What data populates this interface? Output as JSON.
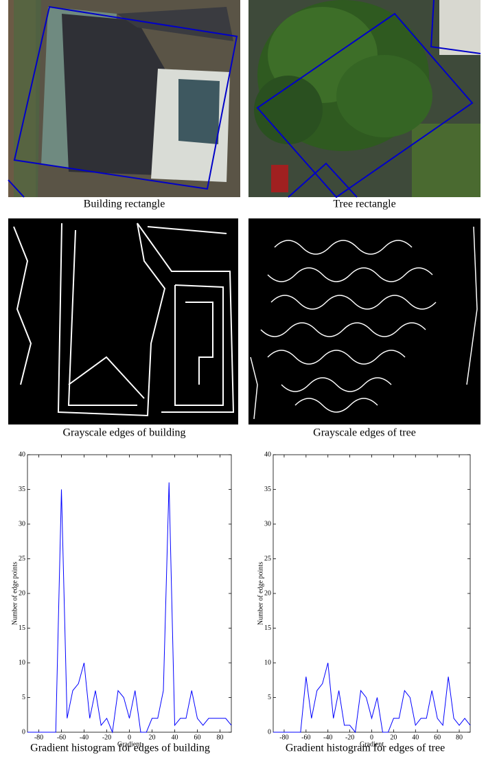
{
  "captions": [
    "Building rectangle",
    "Tree rectangle",
    "Grayscale edges of building",
    "Grayscale edges of tree"
  ],
  "chart_data": [
    {
      "type": "line",
      "caption": "Gradient histogram for edges of building",
      "xlabel": "Gradient",
      "ylabel": "Number of edge points",
      "color": "#0000ff",
      "x": [
        -90,
        -85,
        -80,
        -75,
        -70,
        -65,
        -60,
        -55,
        -50,
        -45,
        -40,
        -35,
        -30,
        -25,
        -20,
        -15,
        -10,
        -5,
        0,
        5,
        10,
        15,
        20,
        25,
        30,
        35,
        40,
        45,
        50,
        55,
        60,
        65,
        70,
        75,
        80,
        85,
        90
      ],
      "values": [
        0,
        0,
        0,
        0,
        0,
        0,
        35,
        2,
        6,
        7,
        10,
        2,
        6,
        1,
        2,
        0,
        6,
        5,
        2,
        6,
        0,
        0,
        2,
        2,
        6,
        36,
        1,
        2,
        2,
        6,
        2,
        1,
        2,
        2,
        2,
        2,
        1
      ],
      "xlim": [
        -90,
        90
      ],
      "xticks": [
        -80,
        -60,
        -40,
        -20,
        0,
        20,
        40,
        60,
        80
      ],
      "ylim": [
        0,
        40
      ],
      "yticks": [
        0,
        5,
        10,
        15,
        20,
        25,
        30,
        35,
        40
      ]
    },
    {
      "type": "line",
      "caption": "Gradient histogram for edges of tree",
      "xlabel": "Gradient",
      "ylabel": "Number of edge points",
      "color": "#0000ff",
      "x": [
        -90,
        -85,
        -80,
        -75,
        -70,
        -65,
        -60,
        -55,
        -50,
        -45,
        -40,
        -35,
        -30,
        -25,
        -20,
        -15,
        -10,
        -5,
        0,
        5,
        10,
        15,
        20,
        25,
        30,
        35,
        40,
        45,
        50,
        55,
        60,
        65,
        70,
        75,
        80,
        85,
        90
      ],
      "values": [
        0,
        0,
        0,
        0,
        0,
        0,
        8,
        2,
        6,
        7,
        10,
        2,
        6,
        1,
        1,
        0,
        6,
        5,
        2,
        5,
        0,
        0,
        2,
        2,
        6,
        5,
        1,
        2,
        2,
        6,
        2,
        1,
        8,
        2,
        1,
        2,
        1
      ],
      "xlim": [
        -90,
        90
      ],
      "xticks": [
        -80,
        -60,
        -40,
        -20,
        0,
        20,
        40,
        60,
        80
      ],
      "ylim": [
        0,
        40
      ],
      "yticks": [
        0,
        5,
        10,
        15,
        20,
        25,
        30,
        35,
        40
      ]
    }
  ]
}
